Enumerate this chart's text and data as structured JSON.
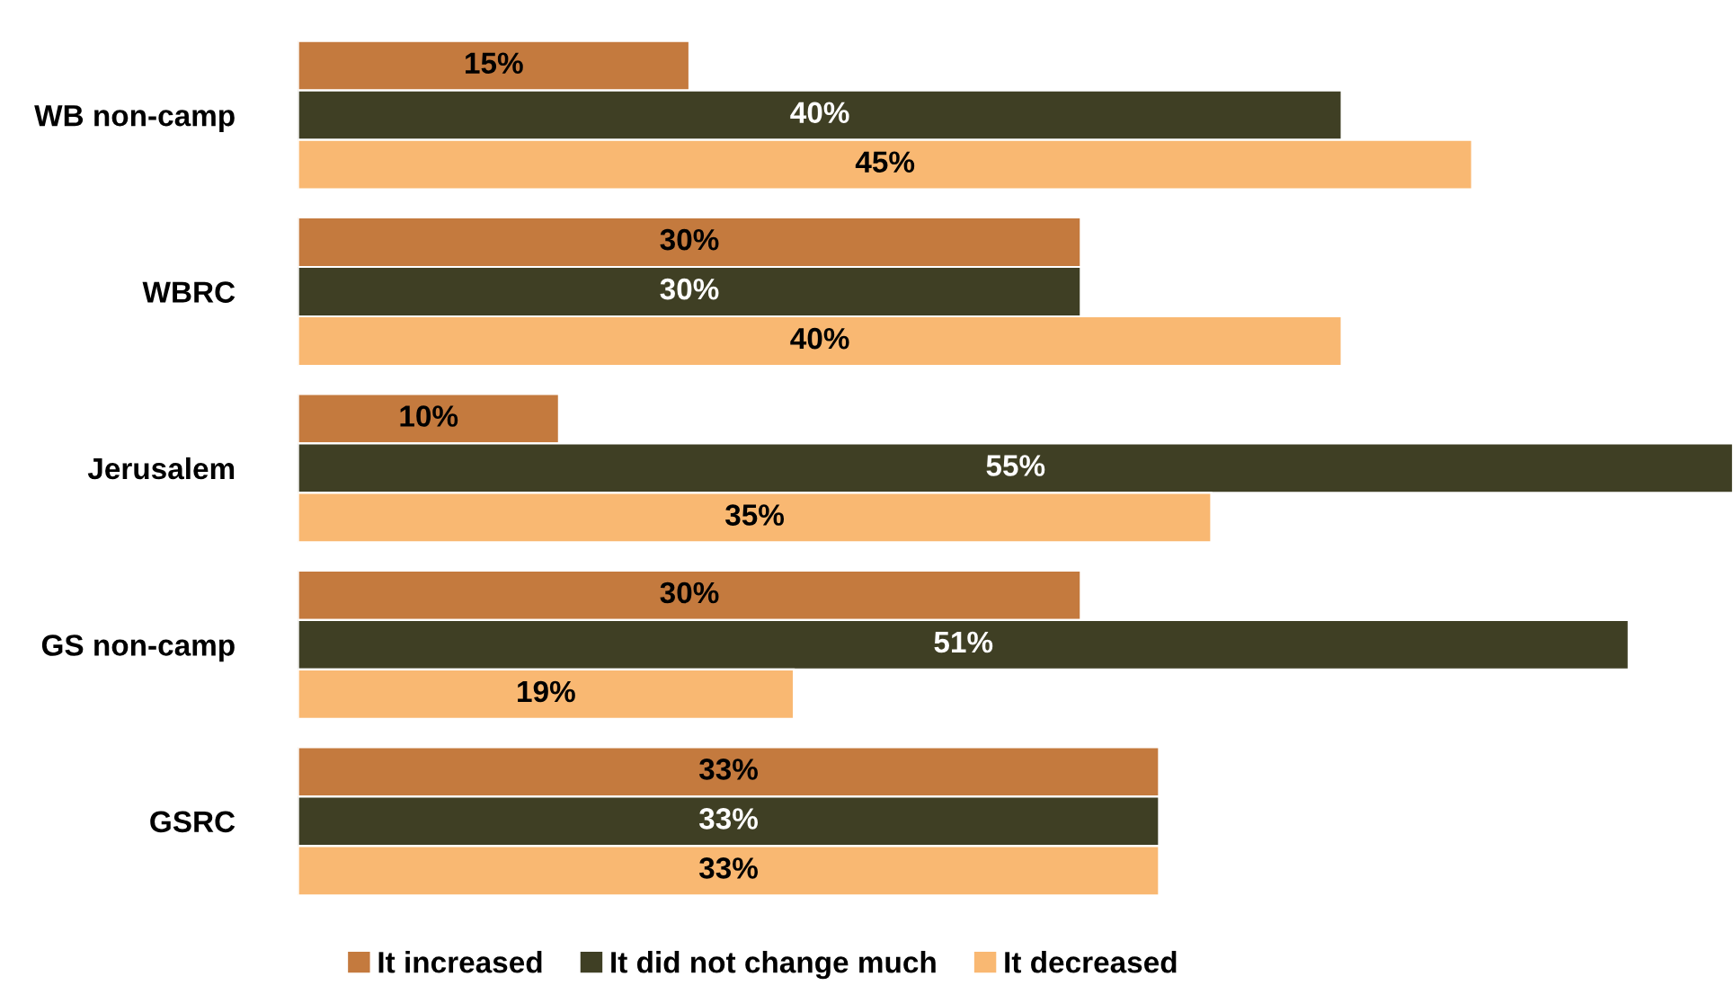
{
  "chart_data": {
    "type": "bar",
    "orientation": "horizontal",
    "categories": [
      "WB non-camp",
      "WBRC",
      "Jerusalem",
      "GS non-camp",
      "GSRC"
    ],
    "series": [
      {
        "name": "It increased",
        "color": "#c47a3e",
        "values": [
          15,
          30,
          10,
          30,
          33
        ],
        "value_labels": [
          "15%",
          "30%",
          "10%",
          "30%",
          "33%"
        ]
      },
      {
        "name": "It did not change much",
        "color": "#3f3f24",
        "values": [
          40,
          30,
          55,
          51,
          33
        ],
        "value_labels": [
          "40%",
          "30%",
          "55%",
          "51%",
          "33%"
        ]
      },
      {
        "name": "It decreased",
        "color": "#f9b872",
        "values": [
          45,
          40,
          35,
          19,
          33
        ],
        "value_labels": [
          "45%",
          "40%",
          "35%",
          "19%",
          "33%"
        ]
      }
    ],
    "grid": false,
    "legend": "bottom"
  }
}
